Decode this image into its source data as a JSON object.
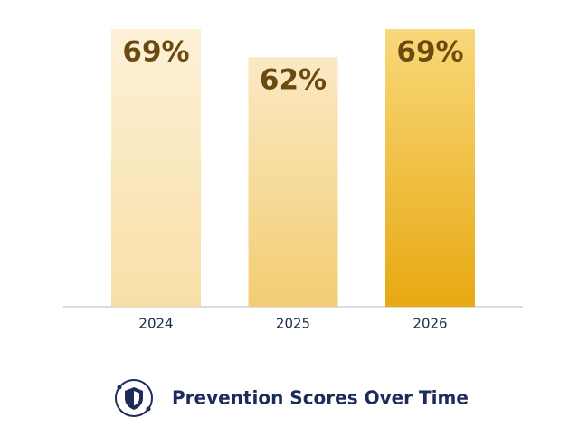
{
  "chart_data": {
    "type": "bar",
    "title": "Prevention Scores Over Time",
    "categories": [
      "2024",
      "2025",
      "2026"
    ],
    "values": [
      69,
      62,
      69
    ],
    "value_labels": [
      "69%",
      "62%",
      "69%"
    ],
    "colors": [
      [
        "#fdf1d8",
        "#f8dfa6"
      ],
      [
        "#fbe9c5",
        "#f2cd72"
      ],
      [
        "#f8d87a",
        "#e8a912"
      ]
    ]
  }
}
